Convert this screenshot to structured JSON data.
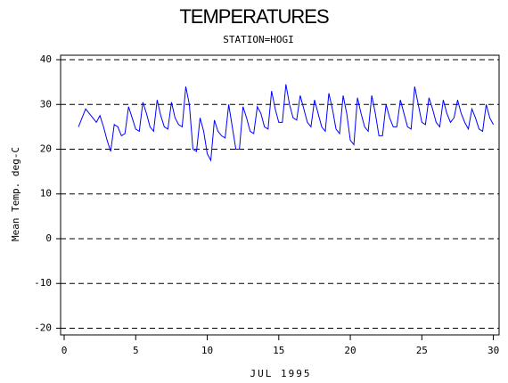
{
  "chart_data": {
    "type": "line",
    "title": "TEMPERATURES",
    "subtitle": "STATION=HOGI",
    "xlabel": "JUL 1995",
    "ylabel": "Mean Temp. deg-C",
    "xlim": [
      -0.25,
      30.4
    ],
    "xticks": [
      0,
      5,
      10,
      15,
      20,
      25,
      30
    ],
    "ylim": [
      -21.5,
      41
    ],
    "yticks": [
      -20,
      -10,
      0,
      10,
      20,
      30,
      40
    ],
    "grid": true,
    "x": [
      1,
      1.25,
      1.5,
      1.75,
      2,
      2.25,
      2.5,
      2.75,
      3,
      3.25,
      3.5,
      3.75,
      4,
      4.25,
      4.5,
      4.75,
      5,
      5.25,
      5.5,
      5.75,
      6,
      6.25,
      6.5,
      6.75,
      7,
      7.25,
      7.5,
      7.75,
      8,
      8.25,
      8.5,
      8.75,
      9,
      9.25,
      9.5,
      9.75,
      10,
      10.25,
      10.5,
      10.75,
      11,
      11.25,
      11.5,
      11.75,
      12,
      12.25,
      12.5,
      12.75,
      13,
      13.25,
      13.5,
      13.75,
      14,
      14.25,
      14.5,
      14.75,
      15,
      15.25,
      15.5,
      15.75,
      16,
      16.25,
      16.5,
      16.75,
      17,
      17.25,
      17.5,
      17.75,
      18,
      18.25,
      18.5,
      18.75,
      19,
      19.25,
      19.5,
      19.75,
      20,
      20.25,
      20.5,
      20.75,
      21,
      21.25,
      21.5,
      21.75,
      22,
      22.25,
      22.5,
      22.75,
      23,
      23.25,
      23.5,
      23.75,
      24,
      24.25,
      24.5,
      24.75,
      25,
      25.25,
      25.5,
      25.75,
      26,
      26.25,
      26.5,
      26.75,
      27,
      27.25,
      27.5,
      27.75,
      28,
      28.25,
      28.5,
      28.75,
      29,
      29.25,
      29.5,
      29.75,
      30
    ],
    "series": [
      {
        "color": "#0000ff",
        "values": [
          25,
          27,
          29,
          28,
          27,
          26,
          27.5,
          25,
          22,
          19.5,
          25.5,
          25,
          23,
          23.5,
          29.5,
          27,
          24.5,
          24,
          30.5,
          28,
          25,
          24,
          31,
          27.5,
          25,
          24.5,
          30.5,
          27,
          25.5,
          25,
          34,
          30,
          20,
          19.5,
          27,
          24,
          19,
          17.5,
          26.5,
          24,
          23,
          22.5,
          30,
          25,
          20,
          20,
          29.5,
          27,
          24,
          23.5,
          29.5,
          28,
          25,
          24.5,
          33,
          29,
          26,
          26,
          34.5,
          30,
          27,
          26.5,
          32,
          29,
          26,
          25,
          31,
          28,
          25,
          24,
          32.5,
          29,
          24.5,
          23.5,
          32,
          28,
          22,
          21,
          31.5,
          28,
          25,
          24,
          32,
          28,
          23,
          23,
          30,
          27,
          25,
          25,
          31,
          28,
          25,
          24.5,
          34,
          30,
          26,
          25.5,
          31.5,
          29,
          26,
          25,
          31,
          28,
          26,
          27,
          31,
          28,
          26,
          24.5,
          29,
          27,
          24.5,
          24,
          30,
          27,
          25.5
        ]
      }
    ]
  }
}
